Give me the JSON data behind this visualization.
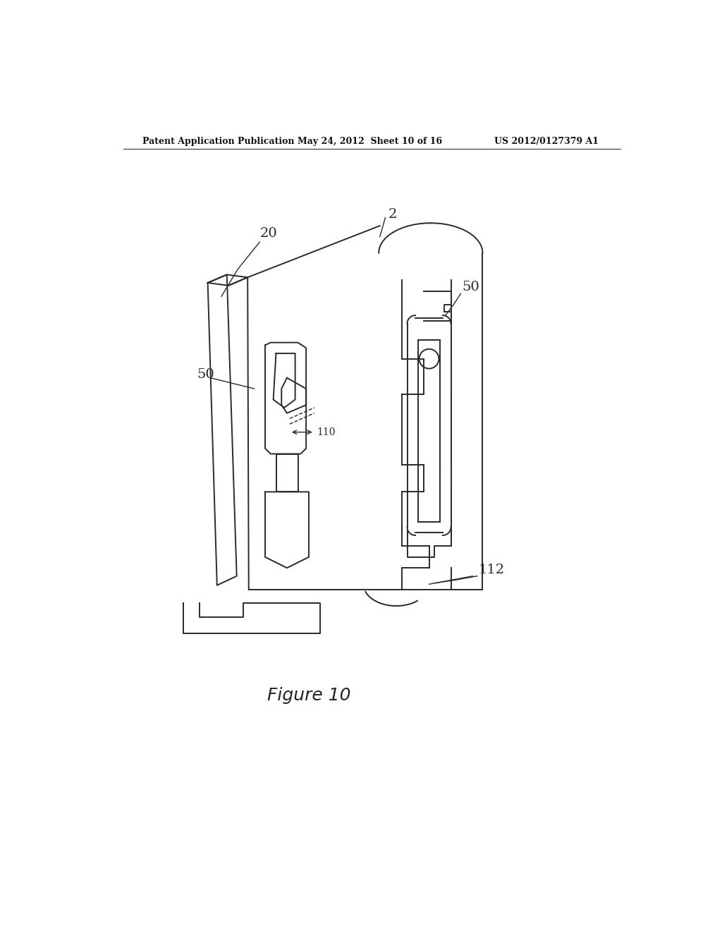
{
  "bg_color": "#ffffff",
  "header_left": "Patent Application Publication",
  "header_mid": "May 24, 2012  Sheet 10 of 16",
  "header_right": "US 2012/0127379 A1",
  "figure_label": "Figure 10",
  "line_color": "#2a2a2a",
  "line_width": 1.4,
  "fig_width": 10.24,
  "fig_height": 13.2
}
